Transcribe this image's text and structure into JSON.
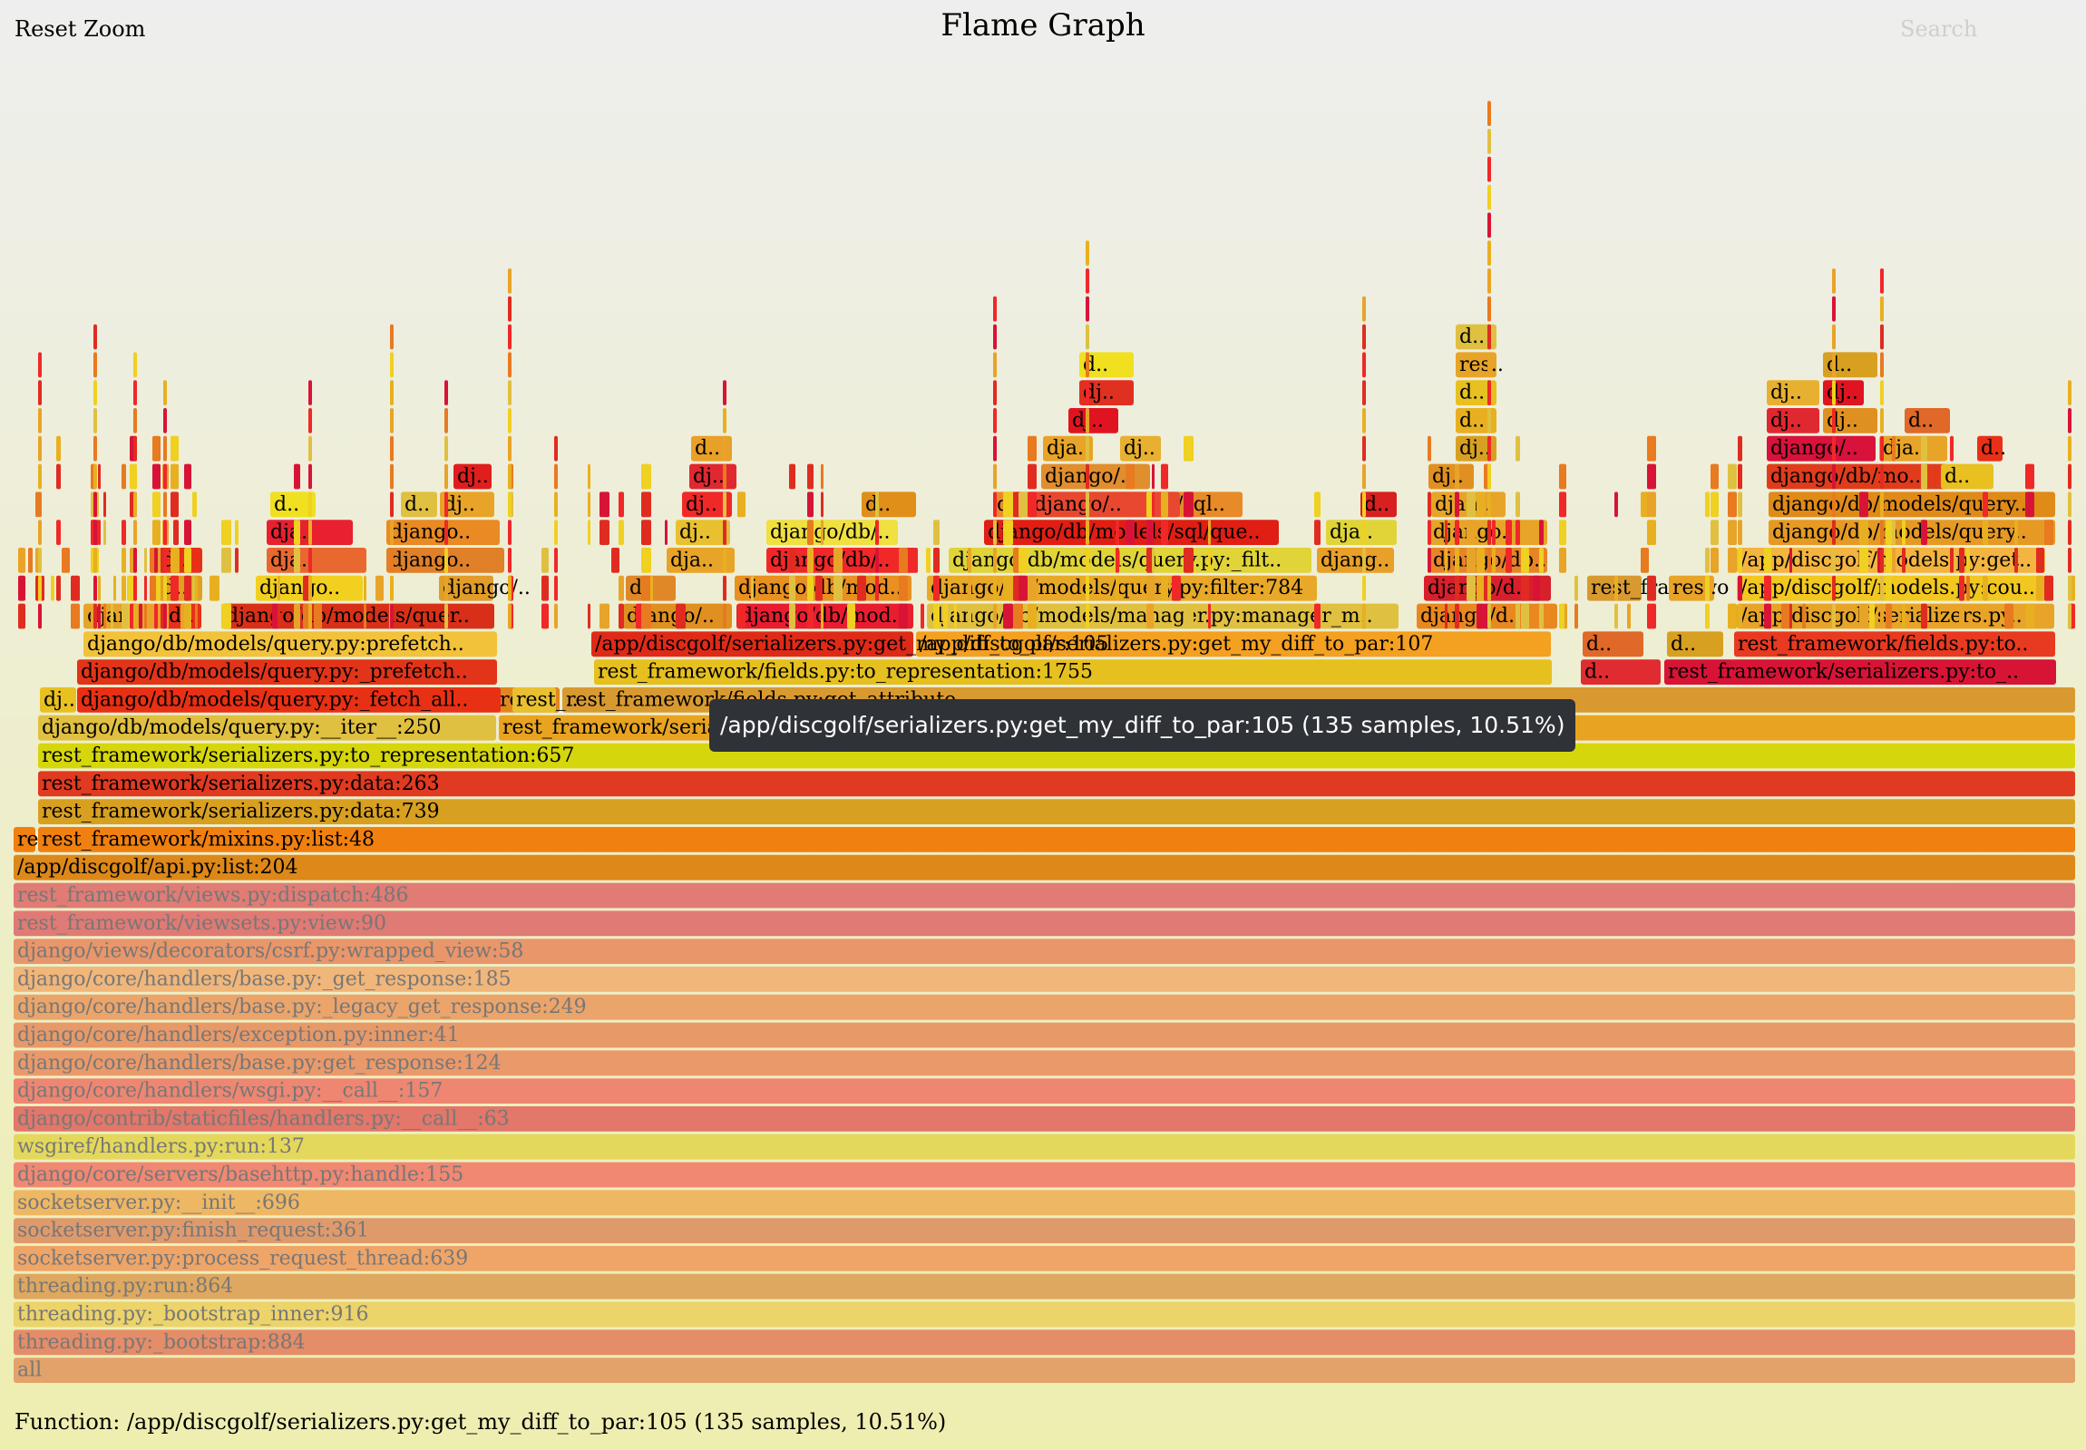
{
  "header": {
    "reset_zoom": "Reset Zoom",
    "title": "Flame Graph",
    "search": "Search"
  },
  "tooltip": "/app/discgolf/serializers.py:get_my_diff_to_par:105 (135 samples, 10.51%)",
  "details": "Function: /app/discgolf/serializers.py:get_my_diff_to_par:105 (135 samples, 10.51%)",
  "colors": {
    "dim_text": "#777777",
    "text": "#000000"
  },
  "frames": [
    {
      "label": "all",
      "dim": true,
      "color": "#e3a26a"
    },
    {
      "label": "threading.py:_bootstrap:884",
      "dim": true,
      "color": "#e48d68"
    },
    {
      "label": "threading.py:_bootstrap_inner:916",
      "dim": true,
      "color": "#ecd36a"
    },
    {
      "label": "threading.py:run:864",
      "dim": true,
      "color": "#dfa860"
    },
    {
      "label": "socketserver.py:process_request_thread:639",
      "dim": true,
      "color": "#efa568"
    },
    {
      "label": "socketserver.py:finish_request:361",
      "dim": true,
      "color": "#df9a6c"
    },
    {
      "label": "socketserver.py:__init__:696",
      "dim": true,
      "color": "#eeb764"
    },
    {
      "label": "django/core/servers/basehttp.py:handle:155",
      "dim": true,
      "color": "#f08872"
    },
    {
      "label": "wsgiref/handlers.py:run:137",
      "dim": true,
      "color": "#e4d85c"
    },
    {
      "label": "django/contrib/staticfiles/handlers.py:__call__:63",
      "dim": true,
      "color": "#e2776a"
    },
    {
      "label": "django/core/handlers/wsgi.py:__call__:157",
      "dim": true,
      "color": "#ee8672"
    },
    {
      "label": "django/core/handlers/base.py:get_response:124",
      "dim": true,
      "color": "#e9996a"
    },
    {
      "label": "django/core/handlers/exception.py:inner:41",
      "dim": true,
      "color": "#e89968"
    },
    {
      "label": "django/core/handlers/base.py:_legacy_get_response:249",
      "dim": true,
      "color": "#eba46a"
    },
    {
      "label": "django/core/handlers/base.py:_get_response:185",
      "dim": true,
      "color": "#f0b67a"
    },
    {
      "label": "django/views/decorators/csrf.py:wrapped_view:58",
      "dim": true,
      "color": "#e8966a"
    },
    {
      "label": "rest_framework/viewsets.py:view:90",
      "dim": true,
      "color": "#e07a74"
    },
    {
      "label": "rest_framework/views.py:dispatch:486",
      "dim": true,
      "color": "#e07c74"
    },
    {
      "label": "/app/discgolf/api.py:list:204",
      "dim": false,
      "color": "#dd8818"
    },
    {
      "label": "rest_framework/mixins.py:list:48",
      "dim": false,
      "color": "#f08010"
    },
    {
      "label": "rest_framework/serializers.py:data:739",
      "dim": false,
      "color": "#d8a020"
    },
    {
      "label": "rest_framework/serializers.py:data:263",
      "dim": false,
      "color": "#e03a20"
    },
    {
      "label": "rest_framework/serializers.py:to_representation:657",
      "dim": false,
      "color": "#d6d60c"
    },
    {
      "label": "django/db/models/query.py:__iter__:250",
      "dim": false,
      "color": "#e0c040"
    },
    {
      "label": "rest_framework/serializers.py:to_representation",
      "dim": false,
      "color": "#e8a420"
    },
    {
      "label": "rest_framework/fields.py:get_attribute",
      "dim": false,
      "color": "#d89a30"
    },
    {
      "label": "rest_framework/fields.py:to_representation:1755",
      "dim": false,
      "color": "#e6c01e"
    },
    {
      "label": "/app/discgolf/serializers.py:get_my_diff_to_par:107",
      "dim": false,
      "color": "#f4a020"
    },
    {
      "label": "/app/discgolf/serializers.py:get_my_diff_to_par:105",
      "dim": false,
      "color": "#e02a18"
    },
    {
      "label": "django/db/models/query.py:_fetch_all..",
      "dim": false,
      "color": "#e83014"
    },
    {
      "label": "django/db/models/query.py:_prefetch..",
      "dim": false,
      "color": "#e23418"
    },
    {
      "label": "django/db/models/query.py:prefetch..",
      "dim": false,
      "color": "#f2c23a"
    },
    {
      "label": "django/db/models/quer..",
      "dim": false,
      "color": "#d83018"
    },
    {
      "label": "django/db/models/manager.py:manager_m..",
      "dim": false,
      "color": "#e0c040"
    },
    {
      "label": "django/db/models/query.py:filter:784",
      "dim": false,
      "color": "#e8a828"
    },
    {
      "label": "django/db/models/query.py:_filt..",
      "dim": false,
      "color": "#e0d438"
    },
    {
      "label": "django/db/models/sql/que..",
      "dim": false,
      "color": "#e01e14"
    },
    {
      "label": "django/db/models/sql..",
      "dim": false,
      "color": "#e88a28"
    },
    {
      "label": "rest_framework/serializers.py:to_..",
      "dim": false,
      "color": "#d81436"
    },
    {
      "label": "rest_framework/fields.py:to..",
      "dim": false,
      "color": "#e83a20"
    },
    {
      "label": "/app/discgolf/serializers.py..",
      "dim": false,
      "color": "#e8a428"
    },
    {
      "label": "/app/discgolf/models.py:cou..",
      "dim": false,
      "color": "#f2c820"
    },
    {
      "label": "/app/discgolf/models.py:get..",
      "dim": false,
      "color": "#f4b440"
    },
    {
      "label": "django/db/models/query..",
      "dim": false,
      "color": "#e69a24"
    },
    {
      "label": "django/db/models/query..",
      "dim": false,
      "color": "#e08a18"
    },
    {
      "label": "django/db/mo..",
      "dim": false,
      "color": "#e03c1c"
    },
    {
      "label": "django/db/models/..",
      "dim": false,
      "color": "#e02024"
    },
    {
      "label": "django/..",
      "dim": false,
      "color": "#d8123a"
    },
    {
      "label": "django/db/mod..",
      "dim": false,
      "color": "#e81e30"
    },
    {
      "label": "django/db/mod..",
      "dim": false,
      "color": "#e89020"
    },
    {
      "label": "django/db/..",
      "dim": false,
      "color": "#f0e040"
    },
    {
      "label": "django/db/..",
      "dim": false,
      "color": "#f02828"
    },
    {
      "label": "django/db/..",
      "dim": false,
      "color": "#e08c2c"
    },
    {
      "label": "django/d..",
      "dim": false,
      "color": "#ea8820"
    },
    {
      "label": "django/d..",
      "dim": false,
      "color": "#d8202c"
    },
    {
      "label": "django/db..",
      "dim": false,
      "color": "#e88428"
    },
    {
      "label": "django..",
      "dim": false,
      "color": "#e8a428"
    },
    {
      "label": "django..",
      "dim": false,
      "color": "#f2d020"
    },
    {
      "label": "django..",
      "dim": false,
      "color": "#e08028"
    },
    {
      "label": "django..",
      "dim": false,
      "color": "#ea8a22"
    },
    {
      "label": "django/..",
      "dim": false,
      "color": "#e29c2a"
    },
    {
      "label": "django/..",
      "dim": false,
      "color": "#e09020"
    },
    {
      "label": "django/..",
      "dim": false,
      "color": "#e84830"
    },
    {
      "label": "django/..",
      "dim": false,
      "color": "#e08e2e"
    },
    {
      "label": "djang..",
      "dim": false,
      "color": "#e8a028"
    },
    {
      "label": "djan..",
      "dim": false,
      "color": "#e8a428"
    },
    {
      "label": "djan..",
      "dim": false,
      "color": "#e03c1c"
    },
    {
      "label": "dja..",
      "dim": false,
      "color": "#e82030"
    },
    {
      "label": "dja..",
      "dim": false,
      "color": "#e86830"
    },
    {
      "label": "dja..",
      "dim": false,
      "color": "#e8a428"
    },
    {
      "label": "dja..",
      "dim": false,
      "color": "#e0d438"
    },
    {
      "label": "dja..",
      "dim": false,
      "color": "#f02424"
    },
    {
      "label": "dja..",
      "dim": false,
      "color": "#e8a428"
    },
    {
      "label": "dj..",
      "dim": false,
      "color": "#e8a428"
    },
    {
      "label": "dj..",
      "dim": false,
      "color": "#e01e1e"
    },
    {
      "label": "dj..",
      "dim": false,
      "color": "#e8c030"
    },
    {
      "label": "dj..",
      "dim": false,
      "color": "#f02828"
    },
    {
      "label": "dj..",
      "dim": false,
      "color": "#e02830"
    },
    {
      "label": "dj..",
      "dim": false,
      "color": "#e09020"
    },
    {
      "label": "dj..",
      "dim": false,
      "color": "#d8a020"
    },
    {
      "label": "dj..",
      "dim": false,
      "color": "#e8b030"
    },
    {
      "label": "dj..",
      "dim": false,
      "color": "#e01420"
    },
    {
      "label": "dj..",
      "dim": false,
      "color": "#e03020"
    },
    {
      "label": "dj..",
      "dim": false,
      "color": "#e8c020"
    },
    {
      "label": "d..",
      "dim": false,
      "color": "#e83018"
    },
    {
      "label": "d..",
      "dim": false,
      "color": "#e0a020"
    },
    {
      "label": "d..",
      "dim": false,
      "color": "#f0e020"
    },
    {
      "label": "d..",
      "dim": false,
      "color": "#e0c040"
    },
    {
      "label": "d..",
      "dim": false,
      "color": "#e08828"
    },
    {
      "label": "d..",
      "dim": false,
      "color": "#e09018"
    },
    {
      "label": "d..",
      "dim": false,
      "color": "#d82020"
    },
    {
      "label": "d..",
      "dim": false,
      "color": "#e8a028"
    },
    {
      "label": "d..",
      "dim": false,
      "color": "#e8b020"
    },
    {
      "label": "d..",
      "dim": false,
      "color": "#e8c020"
    },
    {
      "label": "d..",
      "dim": false,
      "color": "#e83018"
    },
    {
      "label": "d..",
      "dim": false,
      "color": "#e06828"
    },
    {
      "label": "d..",
      "dim": false,
      "color": "#d8a020"
    },
    {
      "label": "d..",
      "dim": false,
      "color": "#e02c30"
    },
    {
      "label": "res..",
      "dim": false,
      "color": "#e8a428"
    },
    {
      "label": "res..",
      "dim": false,
      "color": "#e08820"
    },
    {
      "label": "rest_..",
      "dim": false,
      "color": "#e8c030"
    },
    {
      "label": "rest_framewo",
      "dim": false,
      "color": "#d89a30"
    },
    {
      "label": "r..",
      "dim": false,
      "color": "#d81436"
    },
    {
      "label": "r..",
      "dim": false,
      "color": "#e8a428"
    },
    {
      "label": "r..",
      "dim": false,
      "color": "#e87020"
    }
  ]
}
